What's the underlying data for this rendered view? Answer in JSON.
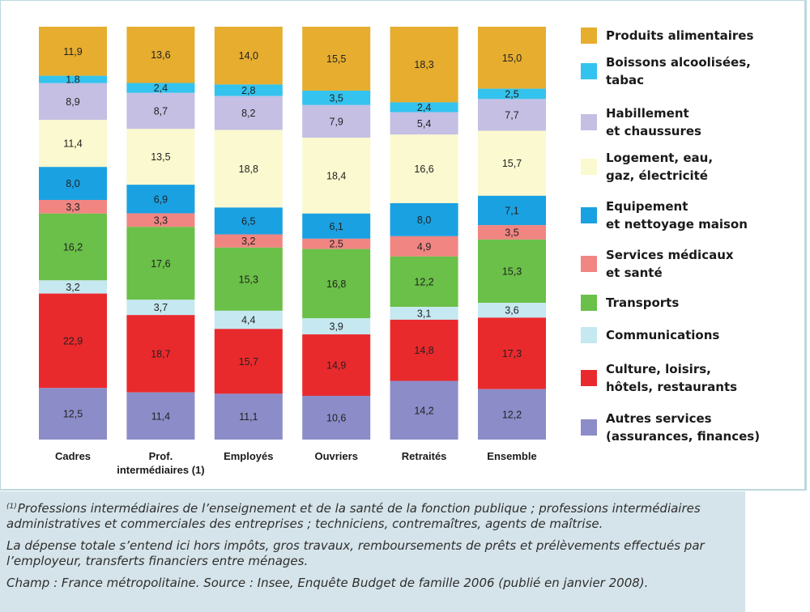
{
  "chart_data": {
    "type": "bar",
    "stacked": true,
    "percent": true,
    "ylim": [
      0,
      100
    ],
    "categories": [
      "Cadres",
      "Prof. intermédiaires (1)",
      "Employés",
      "Ouvriers",
      "Retraités",
      "Ensemble"
    ],
    "category_lines": [
      [
        "Cadres"
      ],
      [
        "Prof.",
        "intermédiaires (1)"
      ],
      [
        "Employés"
      ],
      [
        "Ouvriers"
      ],
      [
        "Retraités"
      ],
      [
        "Ensemble"
      ]
    ],
    "series": [
      {
        "name": "Produits alimentaires",
        "color": "#e6ad2f",
        "values": [
          11.9,
          13.6,
          14.0,
          15.5,
          18.3,
          15.0
        ],
        "labels": [
          "11,9",
          "13,6",
          "14,0",
          "15,5",
          "18,3",
          "15,0"
        ]
      },
      {
        "name": "Boissons alcoolisées, tabac",
        "color": "#33c3ee",
        "values": [
          1.8,
          2.4,
          2.8,
          3.5,
          2.4,
          2.5
        ],
        "labels": [
          "1,8",
          "2,4",
          "2,8",
          "3,5",
          "2,4",
          "2,5"
        ]
      },
      {
        "name": "Habillement et chaussures",
        "color": "#c4bfe3",
        "values": [
          8.9,
          8.7,
          8.2,
          7.9,
          5.4,
          7.7
        ],
        "labels": [
          "8,9",
          "8,7",
          "8,2",
          "7,9",
          "5,4",
          "7,7"
        ]
      },
      {
        "name": "Logement, eau, gaz, électricité",
        "color": "#fbf9cf",
        "values": [
          11.4,
          13.5,
          18.8,
          18.4,
          16.6,
          15.7
        ],
        "labels": [
          "11,4",
          "13,5",
          "18,8",
          "18,4",
          "16,6",
          "15,7"
        ]
      },
      {
        "name": "Equipement et nettoyage maison",
        "color": "#1aa1e2",
        "values": [
          8.0,
          6.9,
          6.5,
          6.1,
          8.0,
          7.1
        ],
        "labels": [
          "8,0",
          "6,9",
          "6,5",
          "6,1",
          "8,0",
          "7,1"
        ]
      },
      {
        "name": "Services médicaux et santé",
        "color": "#f08582",
        "values": [
          3.3,
          3.3,
          3.2,
          2.5,
          4.9,
          3.5
        ],
        "labels": [
          "3,3",
          "3,3",
          "3,2",
          "2.5",
          "4,9",
          "3,5"
        ]
      },
      {
        "name": "Transports",
        "color": "#6ac048",
        "values": [
          16.2,
          17.6,
          15.3,
          16.8,
          12.2,
          15.3
        ],
        "labels": [
          "16,2",
          "17,6",
          "15,3",
          "16,8",
          "12,2",
          "15,3"
        ]
      },
      {
        "name": "Communications",
        "color": "#c5e8f1",
        "values": [
          3.2,
          3.7,
          4.4,
          3.9,
          3.1,
          3.6
        ],
        "labels": [
          "3,2",
          "3,7",
          "4,4",
          "3,9",
          "3,1",
          "3,6"
        ]
      },
      {
        "name": "Culture, loisirs, hôtels, restaurants",
        "color": "#e92a2d",
        "values": [
          22.9,
          18.7,
          15.7,
          14.9,
          14.8,
          17.3
        ],
        "labels": [
          "22,9",
          "18,7",
          "15,7",
          "14,9",
          "14,8",
          "17,3"
        ]
      },
      {
        "name": "Autres services (assurances, finances)",
        "color": "#8c8cc8",
        "values": [
          12.5,
          11.4,
          11.1,
          10.6,
          14.2,
          12.2
        ],
        "labels": [
          "12,5",
          "11,4",
          "11,1",
          "10,6",
          "14,2",
          "12,2"
        ]
      }
    ],
    "legend": {
      "position": "right",
      "items": [
        [
          "Produits alimentaires"
        ],
        [
          "Boissons alcoolisées,",
          "tabac"
        ],
        [
          "Habillement",
          "et chaussures"
        ],
        [
          "Logement, eau,",
          "gaz, électricité"
        ],
        [
          "Equipement",
          "et nettoyage maison"
        ],
        [
          "Services médicaux",
          "et santé"
        ],
        [
          "Transports"
        ],
        [
          "Communications"
        ],
        [
          "Culture, loisirs,",
          "hôtels, restaurants"
        ],
        [
          "Autres services",
          "(assurances, finances)"
        ]
      ]
    }
  },
  "notes": {
    "footnote_marker": "(1)",
    "footnote_text": "Professions intermédiaires de l’enseignement et de la santé de la fonction publique ; professions intermédiaires administratives et commerciales des entreprises ; techniciens, contremaîtres, agents de maîtrise.",
    "scope_note": "La dépense totale s’entend ici hors impôts, gros travaux, remboursements de prêts et prélèvements effectués par l’employeur, transferts financiers entre ménages.",
    "source": "Champ : France métropolitaine. Source : Insee, Enquête Budget de famille 2006 (publié en janvier 2008)."
  }
}
